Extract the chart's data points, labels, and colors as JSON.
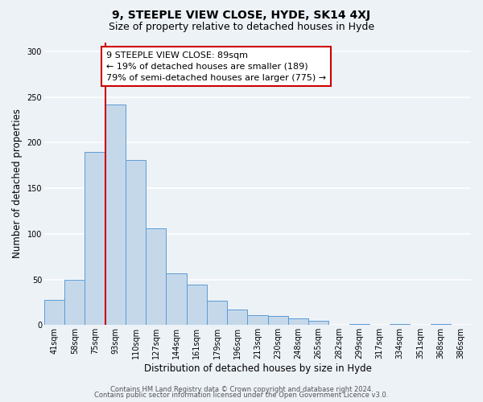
{
  "title": "9, STEEPLE VIEW CLOSE, HYDE, SK14 4XJ",
  "subtitle": "Size of property relative to detached houses in Hyde",
  "xlabel": "Distribution of detached houses by size in Hyde",
  "ylabel": "Number of detached properties",
  "bar_labels": [
    "41sqm",
    "58sqm",
    "75sqm",
    "93sqm",
    "110sqm",
    "127sqm",
    "144sqm",
    "161sqm",
    "179sqm",
    "196sqm",
    "213sqm",
    "230sqm",
    "248sqm",
    "265sqm",
    "282sqm",
    "299sqm",
    "317sqm",
    "334sqm",
    "351sqm",
    "368sqm",
    "386sqm"
  ],
  "bar_values": [
    28,
    50,
    190,
    242,
    181,
    106,
    57,
    44,
    27,
    17,
    11,
    10,
    7,
    5,
    0,
    1,
    0,
    1,
    0,
    1,
    0
  ],
  "bar_color": "#c5d8ea",
  "bar_edge_color": "#5b9bd5",
  "vline_x_index": 3,
  "vline_color": "#cc0000",
  "annotation_text": "9 STEEPLE VIEW CLOSE: 89sqm\n← 19% of detached houses are smaller (189)\n79% of semi-detached houses are larger (775) →",
  "annotation_box_facecolor": "#ffffff",
  "annotation_box_edge": "#cc0000",
  "ylim": [
    0,
    310
  ],
  "yticks": [
    0,
    50,
    100,
    150,
    200,
    250,
    300
  ],
  "footer1": "Contains HM Land Registry data © Crown copyright and database right 2024.",
  "footer2": "Contains public sector information licensed under the Open Government Licence v3.0.",
  "bg_color": "#edf2f7",
  "plot_bg_color": "#edf2f7",
  "grid_color": "#ffffff",
  "title_fontsize": 10,
  "subtitle_fontsize": 9,
  "axis_label_fontsize": 8.5,
  "tick_fontsize": 7,
  "annotation_fontsize": 8,
  "footer_fontsize": 6
}
